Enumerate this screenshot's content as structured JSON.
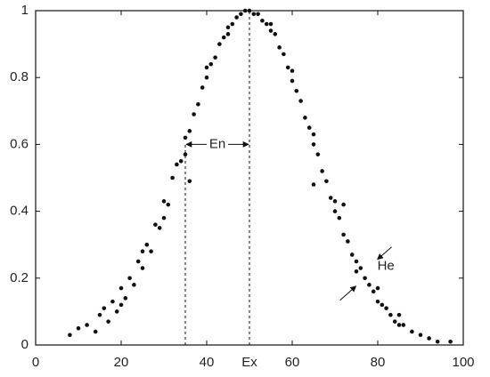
{
  "chart_data": {
    "type": "scatter",
    "x": [
      8,
      10,
      12,
      14,
      15,
      16,
      17,
      18,
      19,
      20,
      21,
      22,
      23,
      24,
      25,
      26,
      27,
      28,
      29,
      30,
      31,
      32,
      33,
      34,
      35,
      36,
      37,
      38,
      39,
      40,
      41,
      42,
      43,
      44,
      45,
      46,
      47,
      48,
      49,
      50,
      51,
      52,
      53,
      54,
      55,
      56,
      57,
      58,
      59,
      60,
      61,
      62,
      63,
      64,
      65,
      66,
      67,
      68,
      69,
      70,
      71,
      72,
      73,
      74,
      75,
      76,
      77,
      78,
      79,
      80,
      81,
      82,
      83,
      84,
      85,
      86,
      88,
      90,
      92,
      94,
      97,
      20,
      25,
      30,
      35,
      40,
      45,
      55,
      60,
      65,
      70,
      75,
      80,
      85,
      36,
      65,
      72
    ],
    "values": [
      0.03,
      0.05,
      0.06,
      0.04,
      0.09,
      0.11,
      0.07,
      0.13,
      0.1,
      0.17,
      0.14,
      0.2,
      0.18,
      0.25,
      0.23,
      0.3,
      0.28,
      0.36,
      0.35,
      0.43,
      0.42,
      0.5,
      0.54,
      0.55,
      0.62,
      0.64,
      0.69,
      0.72,
      0.77,
      0.8,
      0.84,
      0.86,
      0.9,
      0.92,
      0.95,
      0.96,
      0.98,
      0.99,
      1.0,
      1.0,
      0.99,
      0.99,
      0.97,
      0.96,
      0.94,
      0.93,
      0.89,
      0.87,
      0.83,
      0.79,
      0.76,
      0.73,
      0.68,
      0.65,
      0.6,
      0.57,
      0.52,
      0.49,
      0.44,
      0.4,
      0.38,
      0.33,
      0.31,
      0.27,
      0.25,
      0.23,
      0.2,
      0.18,
      0.16,
      0.13,
      0.12,
      0.11,
      0.09,
      0.07,
      0.06,
      0.06,
      0.04,
      0.03,
      0.02,
      0.01,
      0.01,
      0.12,
      0.28,
      0.38,
      0.57,
      0.83,
      0.93,
      0.96,
      0.82,
      0.63,
      0.43,
      0.22,
      0.17,
      0.09,
      0.49,
      0.48,
      0.42
    ],
    "color": "#111111",
    "xlim": [
      0,
      100
    ],
    "xticks": [
      0,
      20,
      40,
      60,
      80,
      100
    ],
    "ylim": [
      0,
      1
    ],
    "yticks": [
      0,
      0.2,
      0.4,
      0.6,
      0.8,
      1
    ],
    "vlines": [
      {
        "x": 35,
        "top": 0.6
      },
      {
        "x": 50,
        "top": 1
      }
    ],
    "annotations": [
      {
        "text": "Ex",
        "x": 50,
        "y": 0
      },
      {
        "text": "En",
        "x": [
          35,
          50
        ],
        "y": 0.6
      },
      {
        "text": "He",
        "x": 77,
        "y": 0.24
      }
    ]
  }
}
